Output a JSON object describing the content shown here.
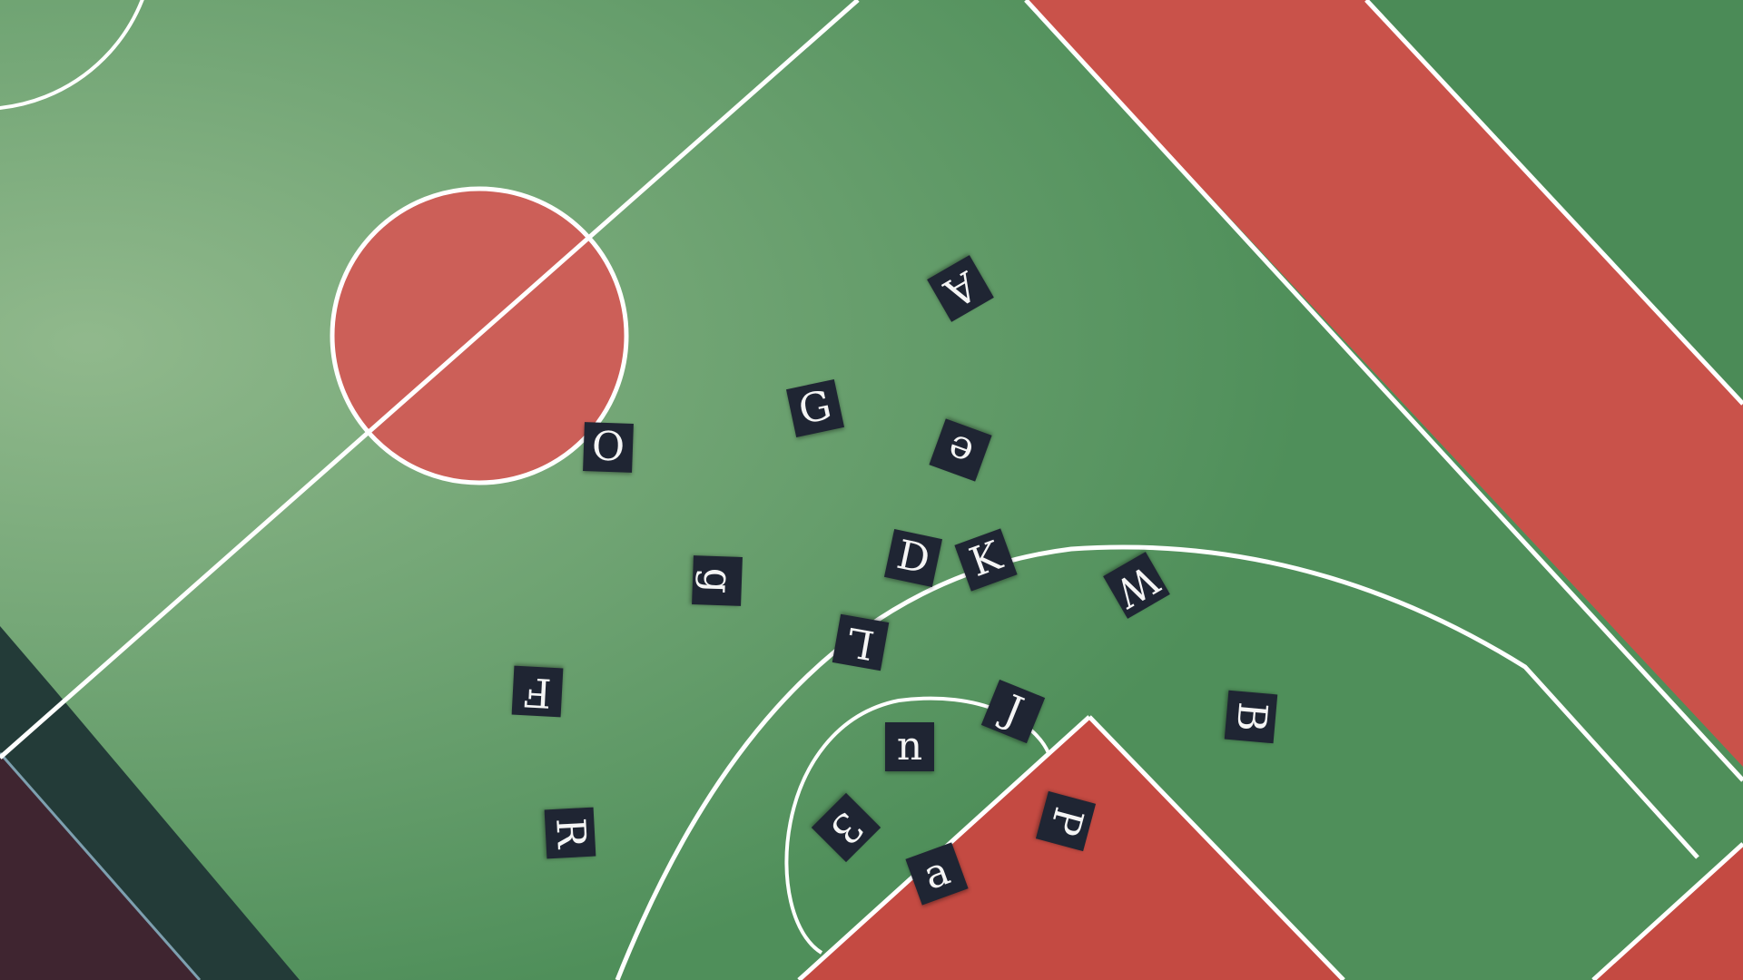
{
  "scene": {
    "description_kind": "aerial-basketball-court-with-letter-tiles",
    "colors": {
      "court_green": "#4f8f5a",
      "court_green_light": "#79a873",
      "court_red": "#c9524a",
      "line_white": "#ffffff",
      "tile_bg": "#1f2533",
      "tile_text": "#f5f5f5",
      "shadow_dark": "#233b38",
      "corner_maroon": "#3f2530"
    }
  },
  "tiles": [
    {
      "id": "A",
      "char": "A"
    },
    {
      "id": "G",
      "char": "G"
    },
    {
      "id": "e",
      "char": "e"
    },
    {
      "id": "O",
      "char": "O"
    },
    {
      "id": "D",
      "char": "D"
    },
    {
      "id": "K",
      "char": "K"
    },
    {
      "id": "g",
      "char": "g"
    },
    {
      "id": "W",
      "char": "W"
    },
    {
      "id": "L",
      "char": "L"
    },
    {
      "id": "F",
      "char": "F"
    },
    {
      "id": "J",
      "char": "J"
    },
    {
      "id": "n",
      "char": "n"
    },
    {
      "id": "B",
      "char": "B"
    },
    {
      "id": "3",
      "char": "3"
    },
    {
      "id": "P",
      "char": "P"
    },
    {
      "id": "R",
      "char": "R"
    },
    {
      "id": "a",
      "char": "a"
    }
  ]
}
